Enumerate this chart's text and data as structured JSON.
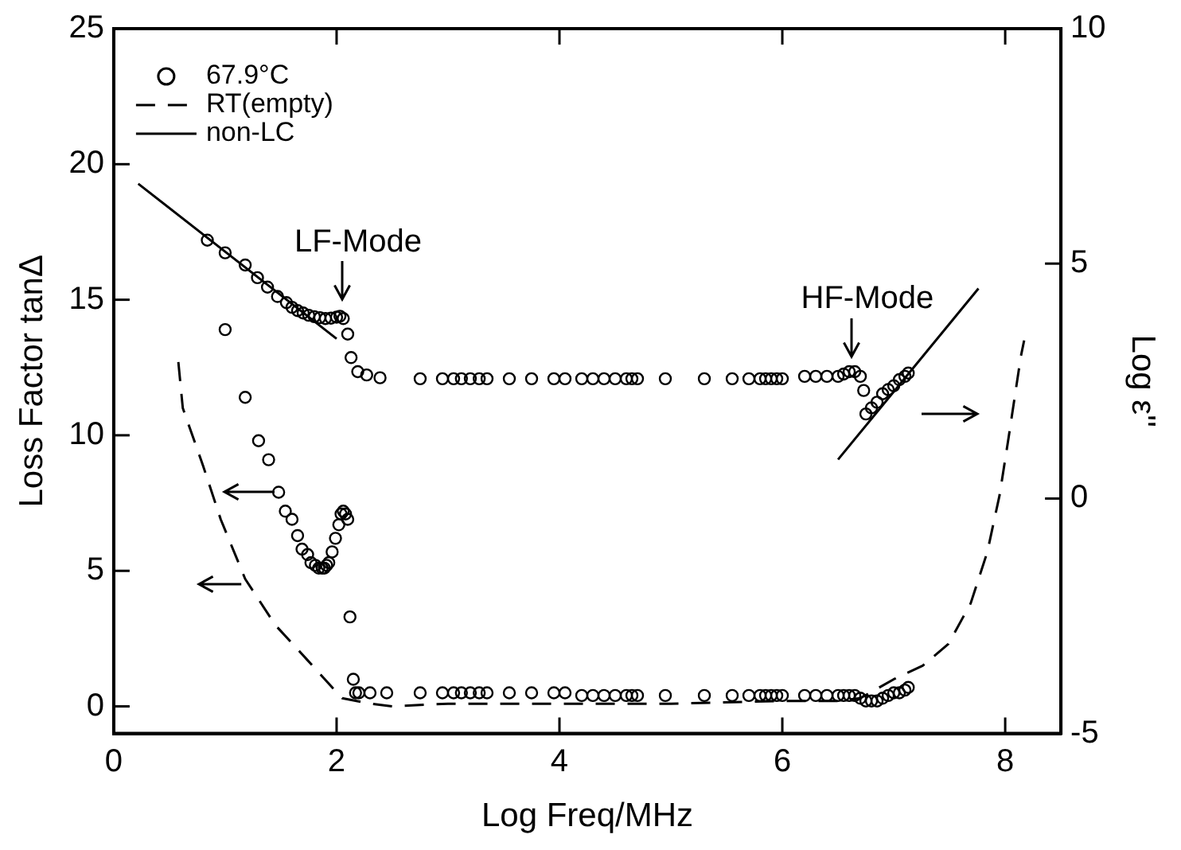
{
  "chart_data": {
    "type": "scatter",
    "xlabel": "Log Freq/MHz",
    "ylabel": "Loss Factor tanΔ",
    "y2label": "Log ε''",
    "xlim": [
      0,
      8.5
    ],
    "xticks": [
      0,
      2,
      4,
      6,
      8
    ],
    "ylim": [
      -1,
      25
    ],
    "yticks": [
      0,
      5,
      10,
      15,
      20,
      25
    ],
    "y2lim": [
      -5,
      10
    ],
    "y2ticks": [
      -5,
      0,
      5,
      10
    ],
    "grid": false,
    "legend": "top left",
    "annotations": [
      "LF-Mode",
      "HF-Mode"
    ],
    "series": [
      {
        "name": "67.9°C",
        "type": "scatter",
        "marker": "circle",
        "color": "#000000",
        "axis": "y2",
        "x": [
          0.84,
          1.0,
          1.18,
          1.29,
          1.38,
          1.47,
          1.55,
          1.6,
          1.65,
          1.7,
          1.75,
          1.8,
          1.85,
          1.9,
          1.95,
          2.0,
          2.03,
          2.06,
          2.1,
          2.13,
          2.19,
          2.27,
          2.39,
          2.75,
          2.95,
          3.05,
          3.12,
          3.2,
          3.28,
          3.35,
          3.55,
          3.75,
          3.95,
          4.05,
          4.2,
          4.3,
          4.4,
          4.5,
          4.6,
          4.65,
          4.7,
          4.95,
          5.3,
          5.55,
          5.7,
          5.8,
          5.85,
          5.9,
          5.95,
          6.0,
          6.2,
          6.3,
          6.4,
          6.5,
          6.55,
          6.6,
          6.65,
          6.7,
          6.73,
          6.75,
          6.8,
          6.85,
          6.9,
          6.95,
          7.0,
          7.05,
          7.1,
          7.13
        ],
        "values": [
          5.5,
          5.23,
          4.97,
          4.7,
          4.5,
          4.3,
          4.17,
          4.07,
          4.0,
          3.95,
          3.9,
          3.87,
          3.85,
          3.83,
          3.84,
          3.86,
          3.88,
          3.83,
          3.5,
          3.0,
          2.7,
          2.63,
          2.57,
          2.55,
          2.55,
          2.55,
          2.55,
          2.55,
          2.55,
          2.55,
          2.55,
          2.55,
          2.55,
          2.55,
          2.55,
          2.55,
          2.55,
          2.55,
          2.55,
          2.55,
          2.55,
          2.55,
          2.55,
          2.55,
          2.55,
          2.55,
          2.55,
          2.55,
          2.55,
          2.55,
          2.6,
          2.6,
          2.6,
          2.6,
          2.65,
          2.7,
          2.7,
          2.6,
          2.3,
          1.8,
          1.93,
          2.05,
          2.23,
          2.32,
          2.4,
          2.53,
          2.6,
          2.67
        ]
      },
      {
        "type": "scatter",
        "marker": "circle",
        "color": "#000000",
        "x": [
          1.0,
          1.18,
          1.3,
          1.39,
          1.48,
          1.54,
          1.6,
          1.65,
          1.69,
          1.74,
          1.77,
          1.81,
          1.84,
          1.87,
          1.89,
          1.91,
          1.93,
          1.96,
          1.99,
          2.02,
          2.04,
          2.06,
          2.08,
          2.1,
          2.12,
          2.15,
          2.17,
          2.2,
          2.3,
          2.45,
          2.75,
          2.95,
          3.05,
          3.12,
          3.2,
          3.28,
          3.35,
          3.55,
          3.75,
          3.95,
          4.05,
          4.2,
          4.3,
          4.4,
          4.5,
          4.6,
          4.65,
          4.7,
          4.95,
          5.3,
          5.55,
          5.7,
          5.8,
          5.85,
          5.9,
          5.95,
          6.0,
          6.2,
          6.3,
          6.4,
          6.5,
          6.55,
          6.6,
          6.65,
          6.7,
          6.75,
          6.8,
          6.85,
          6.9,
          6.95,
          7.0,
          7.05,
          7.1,
          7.13
        ],
        "values": [
          13.9,
          11.4,
          9.8,
          9.1,
          7.9,
          7.2,
          6.9,
          6.3,
          5.8,
          5.6,
          5.3,
          5.2,
          5.1,
          5.1,
          5.1,
          5.2,
          5.3,
          5.7,
          6.2,
          6.7,
          7.1,
          7.2,
          7.1,
          6.9,
          3.3,
          1.0,
          0.5,
          0.5,
          0.5,
          0.5,
          0.5,
          0.5,
          0.5,
          0.5,
          0.5,
          0.5,
          0.5,
          0.5,
          0.5,
          0.5,
          0.5,
          0.4,
          0.4,
          0.4,
          0.4,
          0.4,
          0.4,
          0.4,
          0.4,
          0.4,
          0.4,
          0.4,
          0.4,
          0.4,
          0.4,
          0.4,
          0.4,
          0.4,
          0.4,
          0.4,
          0.4,
          0.4,
          0.4,
          0.4,
          0.3,
          0.2,
          0.2,
          0.2,
          0.3,
          0.4,
          0.5,
          0.5,
          0.6,
          0.7
        ]
      },
      {
        "name": "RT(empty)",
        "type": "line",
        "marker": "none",
        "line_style": "dashed",
        "color": "#000000",
        "x": [
          0.58,
          0.62,
          0.8,
          0.96,
          1.18,
          1.45,
          1.74,
          2.05,
          2.3,
          2.5,
          3,
          4,
          5,
          6,
          6.5,
          6.7,
          7.0,
          7.26,
          7.49,
          7.69,
          7.84,
          7.95,
          8.03,
          8.14,
          8.17
        ],
        "values": [
          12.7,
          11.0,
          8.9,
          6.9,
          4.7,
          3.0,
          1.7,
          0.3,
          0.1,
          0.0,
          0.1,
          0.1,
          0.1,
          0.2,
          0.2,
          0.3,
          1.0,
          1.5,
          2.3,
          3.8,
          5.7,
          7.8,
          9.9,
          12.9,
          13.5
        ]
      },
      {
        "name": "non-LC",
        "type": "line",
        "marker": "none",
        "line_style": "solid",
        "color": "#000000",
        "axis": "y2",
        "x": [
          0.22,
          2.0,
          4,
          6.5,
          7.76
        ],
        "values": [
          6.7,
          3.4,
          null,
          0.83,
          4.47
        ]
      }
    ]
  }
}
